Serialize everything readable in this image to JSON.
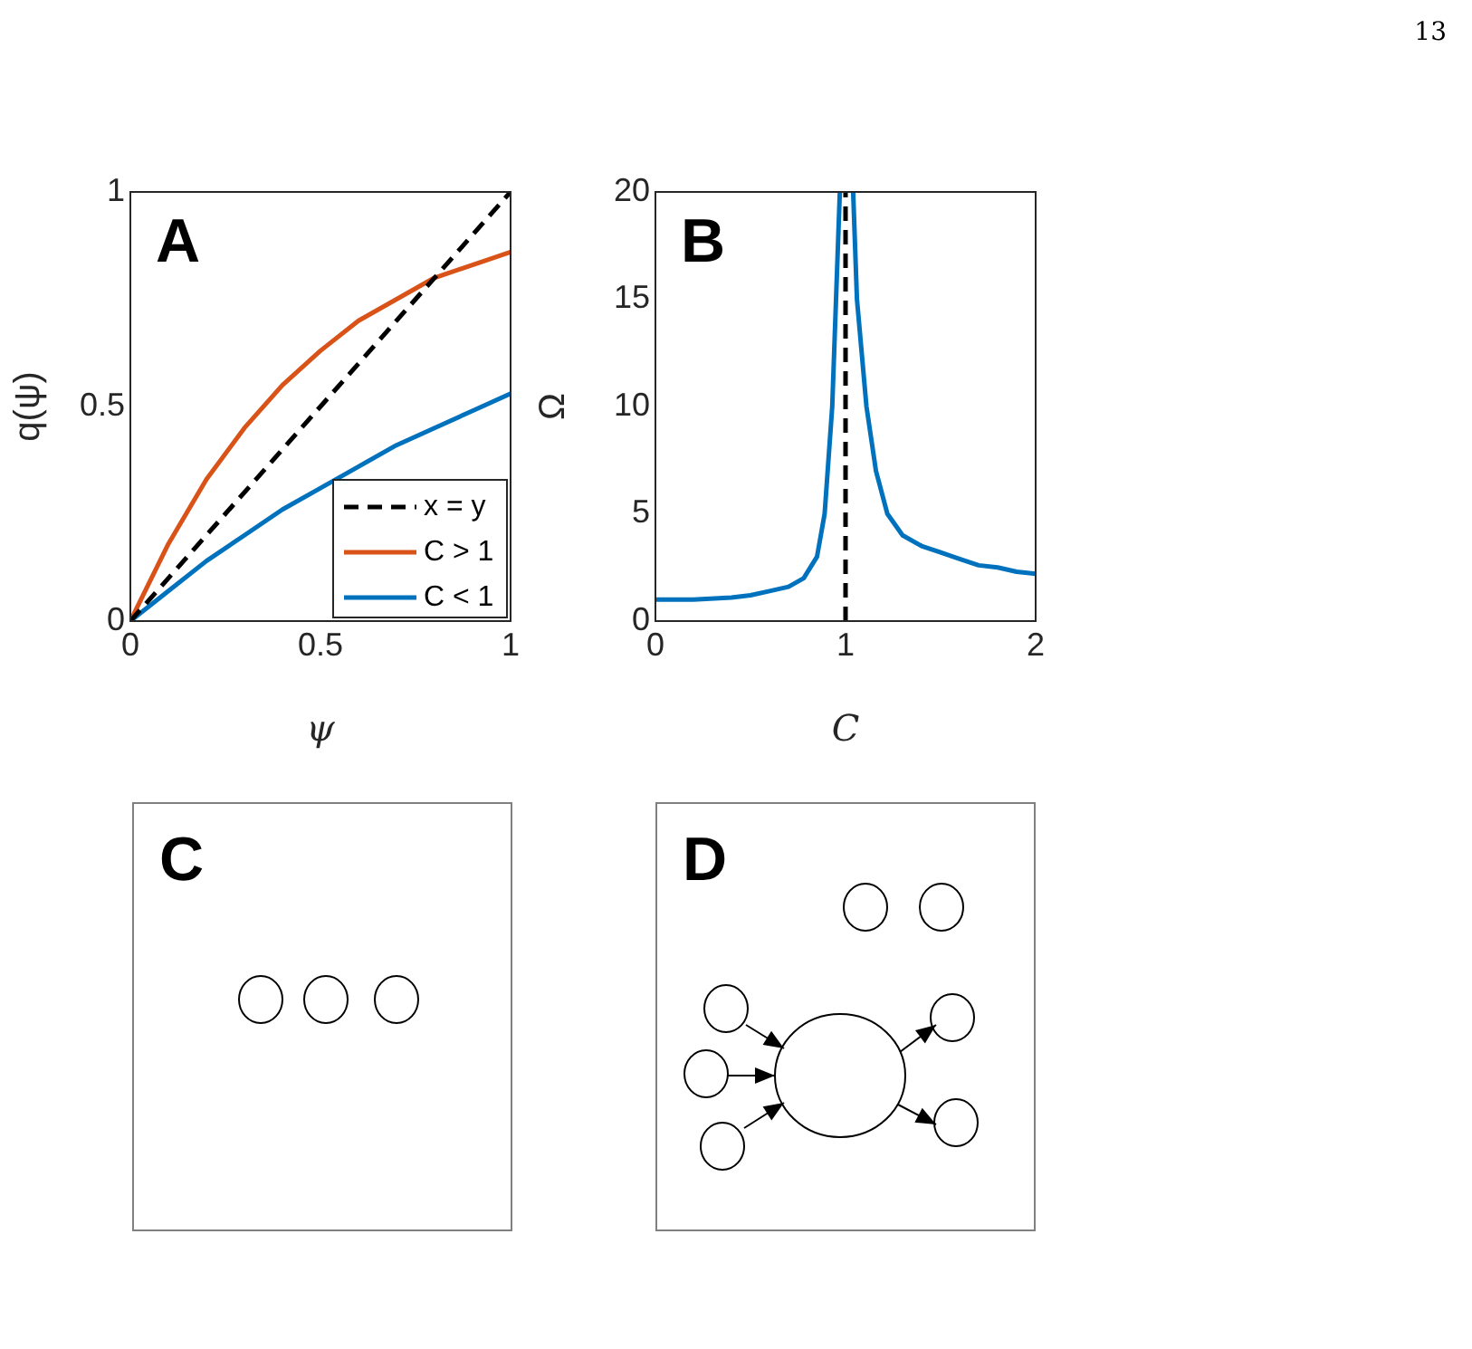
{
  "chart_data": [
    {
      "type": "line",
      "title": "A",
      "xlabel": "ψ",
      "ylabel": "q(ψ)",
      "annotations": [
        "13"
      ],
      "xlim": [
        0,
        1
      ],
      "ylim": [
        0,
        1
      ],
      "xticks": [
        0,
        0.5,
        1
      ],
      "yticks": [
        0,
        0.5,
        1
      ],
      "grid": false,
      "legend": "bottom right",
      "marker": "none",
      "series": [
        {
          "name": "x = y",
          "color": "#000000",
          "line_style": "dashed",
          "x": [
            0,
            1
          ],
          "values": [
            0,
            1
          ]
        },
        {
          "name": "C > 1",
          "color": "#d95319",
          "line_style": "solid",
          "x": [
            0,
            0.1,
            0.2,
            0.3,
            0.4,
            0.5,
            0.6,
            0.7,
            0.8,
            0.9,
            1
          ],
          "values": [
            0,
            0.18,
            0.33,
            0.45,
            0.55,
            0.63,
            0.7,
            0.75,
            0.8,
            0.83,
            0.86
          ]
        },
        {
          "name": "C < 1",
          "color": "#0072bd",
          "line_style": "solid",
          "x": [
            0,
            0.1,
            0.2,
            0.3,
            0.4,
            0.5,
            0.6,
            0.7,
            0.8,
            0.9,
            1
          ],
          "values": [
            0,
            0.07,
            0.14,
            0.2,
            0.26,
            0.31,
            0.36,
            0.41,
            0.45,
            0.49,
            0.53
          ]
        }
      ]
    },
    {
      "type": "line",
      "title": "B",
      "xlabel": "C",
      "ylabel": "Ω",
      "xlim": [
        0,
        2
      ],
      "ylim": [
        0,
        20
      ],
      "xticks": [
        0,
        1,
        2
      ],
      "yticks": [
        0,
        5,
        10,
        15,
        20
      ],
      "grid": false,
      "marker": "none",
      "ref_lines": [
        {
          "axis": "x",
          "value": 1,
          "color": "#000000",
          "line_style": "dashed"
        }
      ],
      "series": [
        {
          "color": "#0072bd",
          "line_style": "solid",
          "x": [
            0,
            0.2,
            0.4,
            0.5,
            0.6,
            0.7,
            0.78,
            0.85,
            0.89,
            0.93,
            0.97,
            1,
            1.04,
            1.06,
            1.11,
            1.16,
            1.22,
            1.3,
            1.4,
            1.5,
            1.6,
            1.7,
            1.8,
            1.9,
            2
          ],
          "values": [
            1,
            1,
            1.1,
            1.2,
            1.4,
            1.6,
            2,
            3,
            5,
            10,
            20,
            null,
            20,
            15,
            10,
            7,
            5,
            4,
            3.5,
            3.2,
            2.9,
            2.6,
            2.5,
            2.3,
            2.2
          ]
        }
      ]
    },
    {
      "type": "other",
      "title": "C"
    },
    {
      "type": "other",
      "title": "D"
    }
  ]
}
